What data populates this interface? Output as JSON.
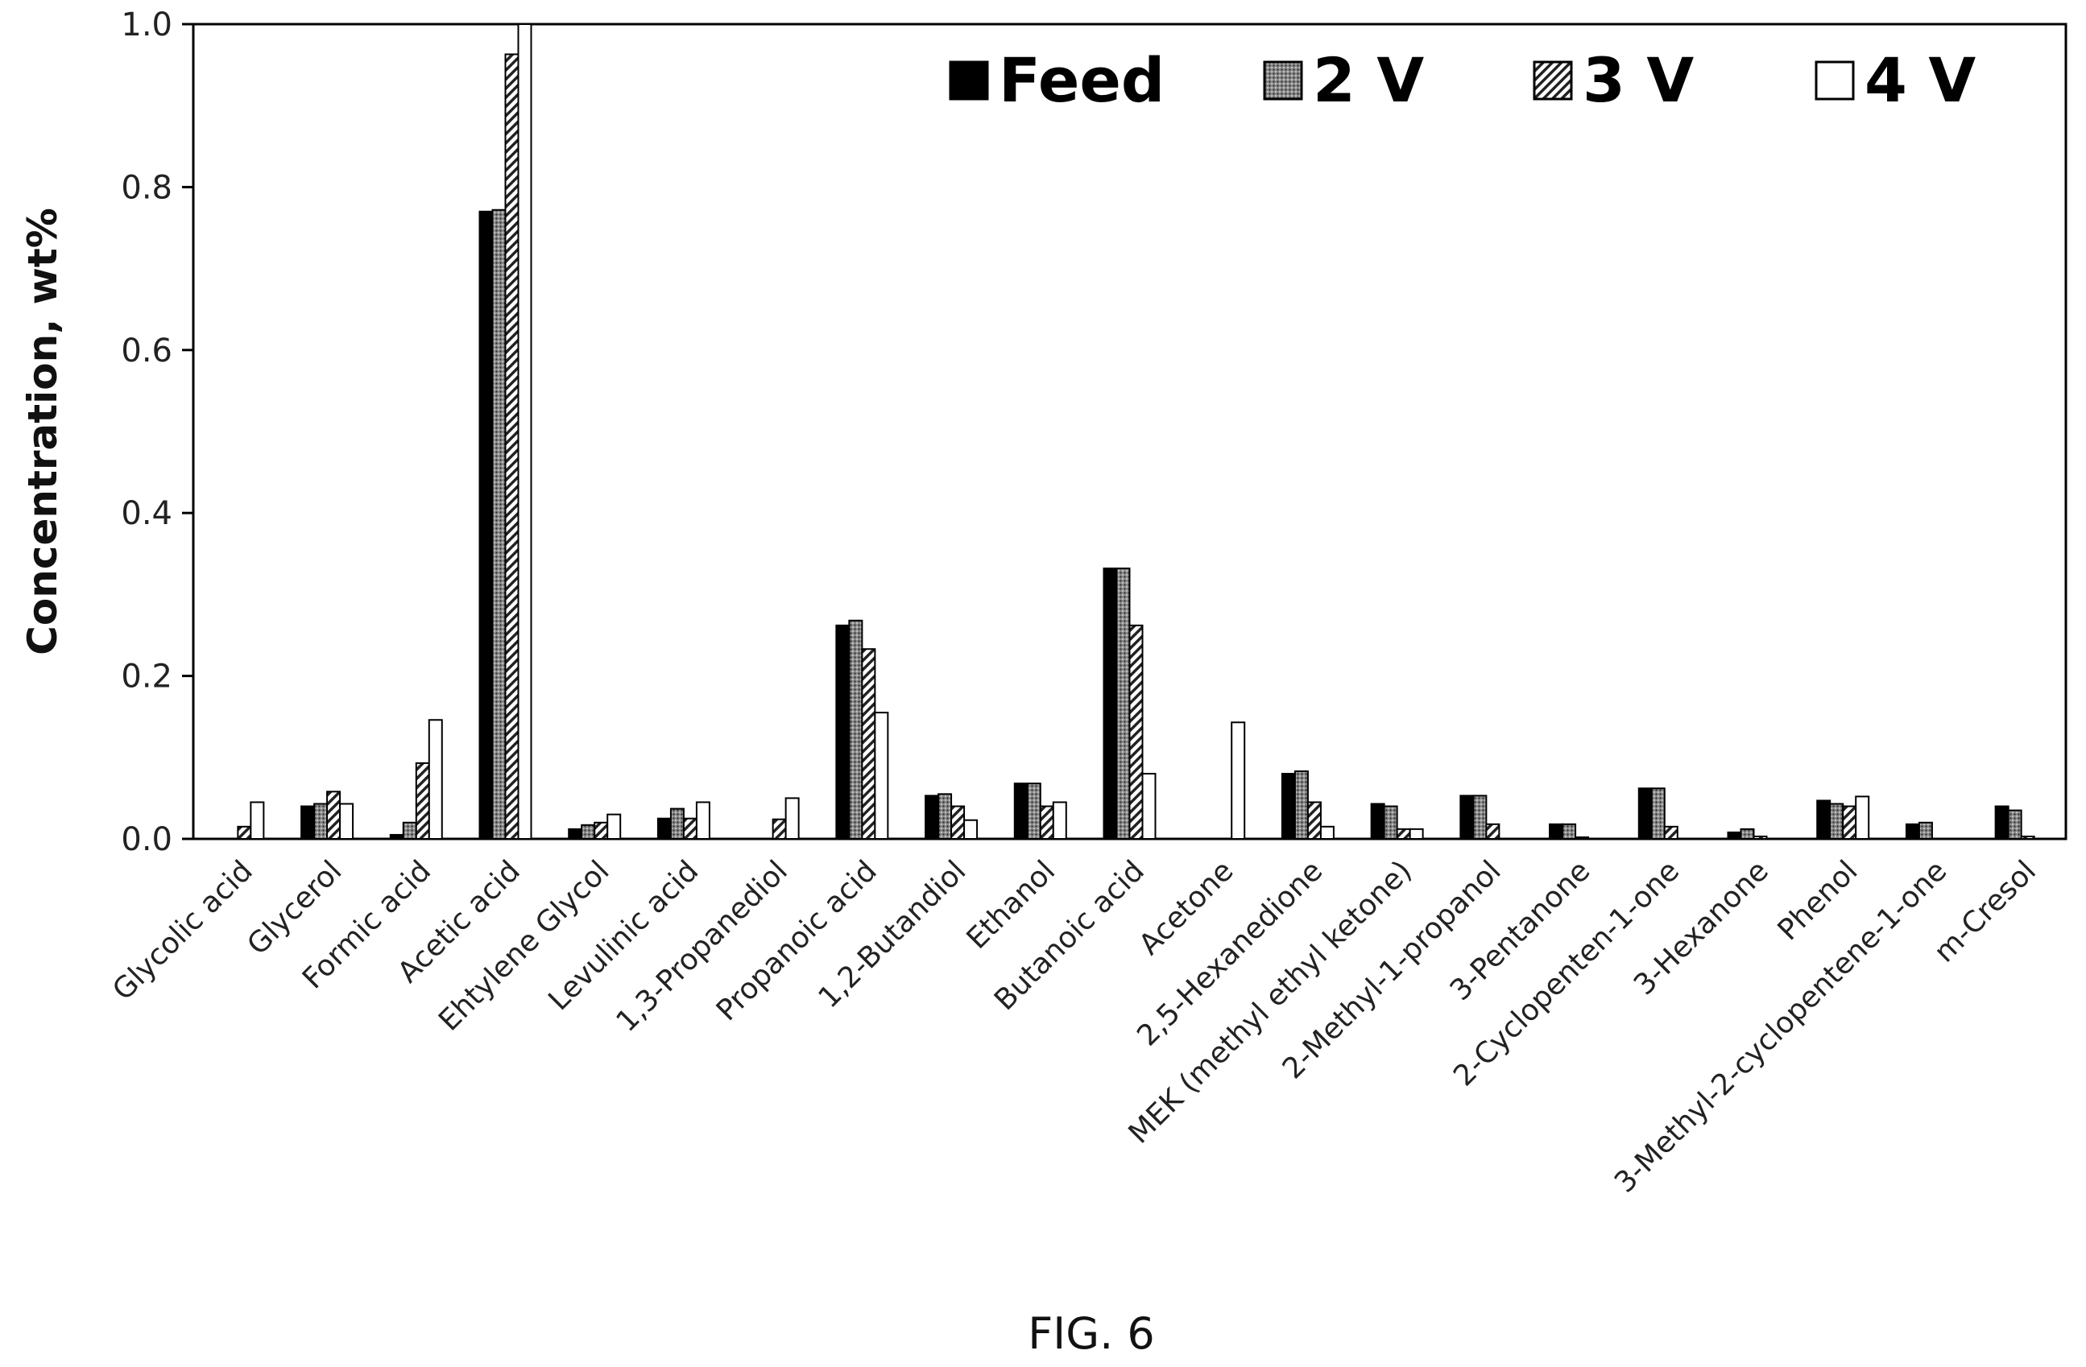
{
  "caption": "FIG. 6",
  "chart_data": {
    "type": "bar",
    "title": "",
    "xlabel": "",
    "ylabel": "Concentration, wt%",
    "ylim": [
      0,
      1.0
    ],
    "yticks": [
      "0.0",
      "0.2",
      "0.4",
      "0.6",
      "0.8",
      "1.0"
    ],
    "legend_position": "top-right",
    "categories": [
      "Glycolic acid",
      "Glycerol",
      "Formic acid",
      "Acetic acid",
      "Ehtylene Glycol",
      "Levulinic acid",
      "1,3-Propanediol",
      "Propanoic acid",
      "1,2-Butandiol",
      "Ethanol",
      "Butanoic acid",
      "Acetone",
      "2,5-Hexanedione",
      "MEK (methyl ethyl ketone)",
      "2-Methyl-1-propanol",
      "3-Pentanone",
      "2-Cyclopenten-1-one",
      "3-Hexanone",
      "Phenol",
      "3-Methyl-2-cyclopentene-1-one",
      "m-Cresol"
    ],
    "series": [
      {
        "name": "Feed",
        "fill": "solid",
        "color": "#000000",
        "values": [
          0,
          0.04,
          0.005,
          0.77,
          0.012,
          0.025,
          0,
          0.262,
          0.053,
          0.068,
          0.332,
          0,
          0.08,
          0.043,
          0.053,
          0.018,
          0.062,
          0.008,
          0.047,
          0.018,
          0.04
        ]
      },
      {
        "name": "2 V",
        "fill": "dots",
        "color": "#555555",
        "values": [
          0,
          0.043,
          0.02,
          0.772,
          0.017,
          0.037,
          0,
          0.268,
          0.055,
          0.068,
          0.332,
          0,
          0.083,
          0.04,
          0.053,
          0.018,
          0.062,
          0.012,
          0.043,
          0.02,
          0.035
        ]
      },
      {
        "name": "3 V",
        "fill": "hatch",
        "color": "#777777",
        "values": [
          0.015,
          0.058,
          0.093,
          0.963,
          0.02,
          0.025,
          0.024,
          0.233,
          0.04,
          0.04,
          0.262,
          0,
          0.045,
          0.012,
          0.018,
          0.002,
          0.015,
          0.003,
          0.04,
          0,
          0.003
        ]
      },
      {
        "name": "4 V",
        "fill": "white",
        "color": "#ffffff",
        "values": [
          0.045,
          0.043,
          0.146,
          1.0,
          0.03,
          0.045,
          0.05,
          0.155,
          0.023,
          0.045,
          0.08,
          0.143,
          0.015,
          0.012,
          0,
          0,
          0,
          0,
          0.052,
          0,
          0
        ]
      }
    ]
  }
}
